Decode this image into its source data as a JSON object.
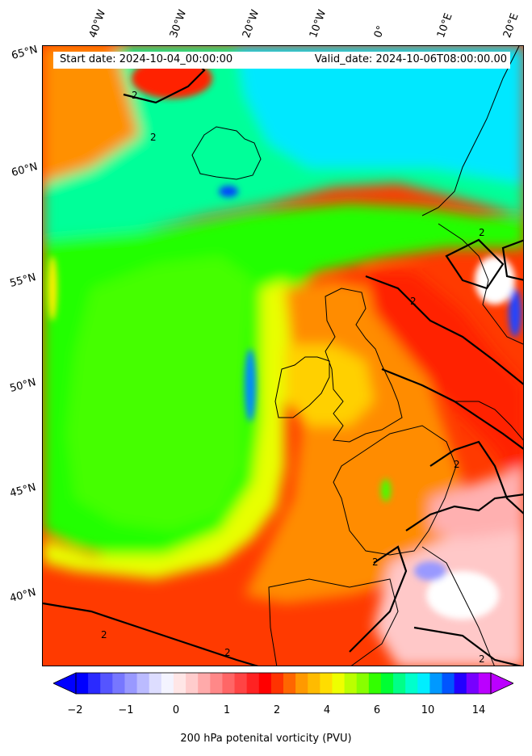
{
  "header": {
    "start_date": "Start date: 2024-10-04_00:00:00",
    "valid_date": "Valid_date: 2024-10-06T08:00:00.00"
  },
  "lon_labels": [
    "40°W",
    "30°W",
    "20°W",
    "10°W",
    "0°",
    "10°E",
    "20°E"
  ],
  "lat_labels": [
    "65°N",
    "60°N",
    "55°N",
    "50°N",
    "45°N",
    "40°N"
  ],
  "contour_label": "2",
  "colorbar": {
    "label": "200 hPa potenital vorticity (PVU)",
    "ticks": [
      "−2",
      "−1",
      "0",
      "1",
      "2",
      "4",
      "6",
      "10",
      "14"
    ],
    "colors": [
      "#0000ff",
      "#2a2aff",
      "#5555ff",
      "#7777ff",
      "#9999ff",
      "#bbbbff",
      "#ddddff",
      "#f4f4ff",
      "#ffe6e6",
      "#ffcccc",
      "#ffaaaa",
      "#ff8888",
      "#ff6666",
      "#ff4444",
      "#ff2222",
      "#ff0000",
      "#ff3300",
      "#ff6600",
      "#ff9900",
      "#ffbb00",
      "#ffdd00",
      "#eeff00",
      "#bbff00",
      "#88ff00",
      "#33ff00",
      "#00ff33",
      "#00ff88",
      "#00ffcc",
      "#00eeff",
      "#0099ff",
      "#0055ff",
      "#2200ff",
      "#7700ff",
      "#bb00ff"
    ]
  },
  "colors": {
    "low_red": "#ff2a00",
    "orange": "#ff8800",
    "yellow": "#f0ff00",
    "green": "#22ff00",
    "teal": "#00ff99",
    "cyan": "#00e5ff",
    "pink": "#ffb0b0",
    "blue": "#3355ff"
  }
}
